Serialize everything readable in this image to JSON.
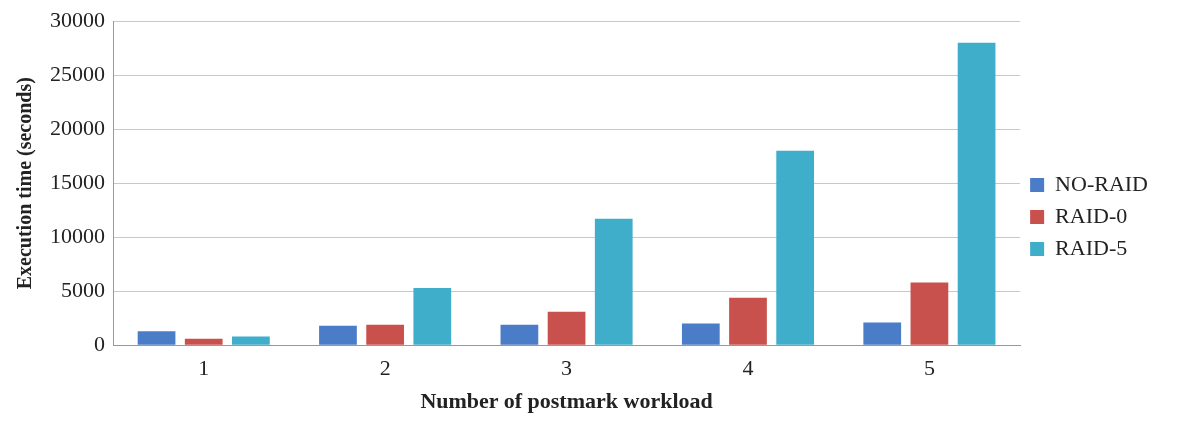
{
  "chart_data": {
    "type": "bar",
    "xlabel": "Number of postmark workload",
    "ylabel": "Execution time (seconds)",
    "categories": [
      "1",
      "2",
      "3",
      "4",
      "5"
    ],
    "series": [
      {
        "name": "NO-RAID",
        "color": "#4a7cc7",
        "values": [
          1300,
          1800,
          1900,
          2000,
          2100
        ]
      },
      {
        "name": "RAID-0",
        "color": "#c8504d",
        "values": [
          600,
          1900,
          3100,
          4400,
          5800
        ]
      },
      {
        "name": "RAID-5",
        "color": "#3faecb",
        "values": [
          800,
          5300,
          11700,
          18000,
          28000
        ]
      }
    ],
    "ylim": [
      0,
      30000
    ],
    "yticks": [
      0,
      5000,
      10000,
      15000,
      20000,
      25000,
      30000
    ],
    "grid": "y",
    "legend": "right"
  }
}
